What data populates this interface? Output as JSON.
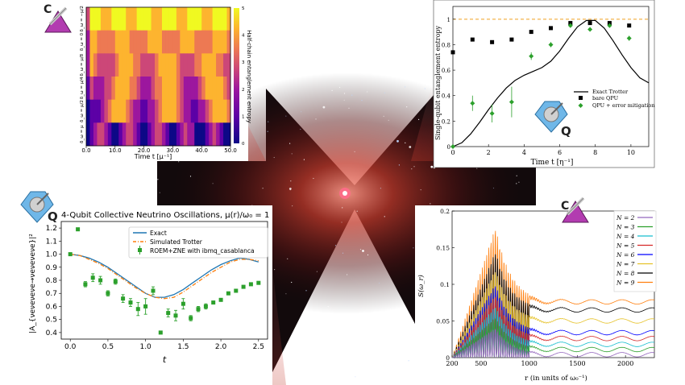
{
  "colors": {
    "space": "#0a0608",
    "nebula": "#c0392b",
    "quantum_icon": "#6fb7e8",
    "classical_icon": "#b23cb0"
  },
  "icons": {
    "top_left": {
      "name": "classical-computing-icon",
      "letter": "C"
    },
    "top_right": {
      "name": "quantum-computing-icon",
      "letter": "Q"
    },
    "mid_left": {
      "name": "quantum-computing-icon",
      "letter": "Q"
    },
    "bottom_right": {
      "name": "classical-computing-icon",
      "letter": "C"
    }
  },
  "chart_data": [
    {
      "id": "heatmap",
      "type": "heatmap",
      "title": "",
      "xlabel": "Time t [μ⁻¹]",
      "ylabel": "",
      "xticks": [
        "0.0",
        "10.0",
        "20.0",
        "30.0",
        "40.0",
        "50.0"
      ],
      "xlim": [
        0,
        50
      ],
      "row_labels": [
        "δ_ω = −μ/2",
        "δ_ω = 0",
        "δ_ω = μ/8",
        "δ_ω = μ/4",
        "δ_ω = μ/2",
        "δ_ω = μ"
      ],
      "colorbar": {
        "label": "Half-chain entanglement entropy",
        "ticks": [
          "0",
          "1",
          "2",
          "3",
          "4",
          "5"
        ],
        "range": [
          0,
          5
        ]
      },
      "colors": [
        "#0d0887",
        "#5c01a6",
        "#9c179e",
        "#cc4778",
        "#ed7953",
        "#fdb42f",
        "#f0f921"
      ]
    },
    {
      "id": "single-qubit-entropy",
      "type": "scatter",
      "title": "",
      "xlabel": "Time t [η⁻¹]",
      "ylabel": "Single-qubit entanglement entropy",
      "xlim": [
        0,
        11
      ],
      "ylim": [
        0,
        1.1
      ],
      "xticks": [
        "0",
        "2",
        "4",
        "6",
        "8",
        "10"
      ],
      "yticks": [
        "0",
        "0.2",
        "0.4",
        "0.6",
        "0.8",
        "1"
      ],
      "reference_line": 1.0,
      "series": [
        {
          "name": "Exact Trotter",
          "style": "line",
          "color": "#000000",
          "x": [
            0,
            0.5,
            1,
            1.5,
            2,
            2.5,
            3,
            3.5,
            4,
            4.5,
            5,
            5.5,
            6,
            6.5,
            7,
            7.5,
            8,
            8.5,
            9,
            9.5,
            10,
            10.5,
            11
          ],
          "y": [
            0.0,
            0.03,
            0.1,
            0.19,
            0.29,
            0.38,
            0.46,
            0.52,
            0.56,
            0.59,
            0.62,
            0.67,
            0.75,
            0.85,
            0.94,
            0.99,
            0.99,
            0.93,
            0.83,
            0.72,
            0.62,
            0.54,
            0.5
          ]
        },
        {
          "name": "bare QPU",
          "style": "square",
          "color": "#000000",
          "x": [
            0,
            1.1,
            2.2,
            3.3,
            4.4,
            5.5,
            6.6,
            7.7,
            8.8,
            9.9
          ],
          "y": [
            0.74,
            0.84,
            0.82,
            0.84,
            0.9,
            0.93,
            0.97,
            0.97,
            0.97,
            0.95
          ]
        },
        {
          "name": "QPU + error mitigation",
          "style": "diamond",
          "color": "#2ca02c",
          "x": [
            0,
            1.1,
            2.2,
            3.3,
            4.4,
            5.5,
            6.6,
            7.7,
            8.8,
            9.9
          ],
          "y": [
            0.0,
            0.34,
            0.26,
            0.35,
            0.71,
            0.8,
            0.95,
            0.92,
            0.95,
            0.85
          ],
          "err": [
            0.0,
            0.06,
            0.07,
            0.12,
            0.03,
            0.02,
            0.01,
            0.01,
            0.01,
            0.02
          ]
        }
      ]
    },
    {
      "id": "four-qubit-neutrino",
      "type": "line",
      "title": "4-Qubit Collective Neutrino Oscillations, μ(r)/ω₀ = 1",
      "xlabel": "t",
      "ylabel": "|A_{νeνeνeνe→νeνeνeνe}|²",
      "xlim": [
        -0.12,
        2.62
      ],
      "ylim": [
        0.35,
        1.25
      ],
      "xticks": [
        "0.0",
        "0.5",
        "1.0",
        "1.5",
        "2.0",
        "2.5"
      ],
      "yticks": [
        "0.4",
        "0.5",
        "0.6",
        "0.7",
        "0.8",
        "0.9",
        "1.0",
        "1.1",
        "1.2"
      ],
      "series": [
        {
          "name": "Exact",
          "style": "line",
          "color": "#1f77b4",
          "x": [
            0,
            0.125,
            0.25,
            0.375,
            0.5,
            0.625,
            0.75,
            0.875,
            1.0,
            1.125,
            1.25,
            1.375,
            1.5,
            1.625,
            1.75,
            1.875,
            2.0,
            2.125,
            2.25,
            2.375,
            2.5
          ],
          "y": [
            1.0,
            0.99,
            0.97,
            0.94,
            0.9,
            0.85,
            0.8,
            0.75,
            0.7,
            0.67,
            0.67,
            0.69,
            0.73,
            0.78,
            0.83,
            0.88,
            0.92,
            0.95,
            0.97,
            0.96,
            0.94
          ]
        },
        {
          "name": "Simulated Trotter",
          "style": "dashdot",
          "color": "#ff7f0e",
          "x": [
            0,
            0.125,
            0.25,
            0.375,
            0.5,
            0.625,
            0.75,
            0.875,
            1.0,
            1.125,
            1.25,
            1.375,
            1.5,
            1.625,
            1.75,
            1.875,
            2.0,
            2.125,
            2.25,
            2.375,
            2.5
          ],
          "y": [
            1.0,
            0.99,
            0.96,
            0.93,
            0.89,
            0.84,
            0.79,
            0.74,
            0.7,
            0.67,
            0.66,
            0.67,
            0.71,
            0.76,
            0.81,
            0.86,
            0.9,
            0.94,
            0.96,
            0.96,
            0.95
          ]
        },
        {
          "name": "ROEM+ZNE with ibmq_casablanca",
          "style": "errorbar",
          "color": "#2ca02c",
          "x": [
            0,
            0.1,
            0.2,
            0.3,
            0.4,
            0.5,
            0.6,
            0.7,
            0.8,
            0.9,
            1.0,
            1.1,
            1.2,
            1.3,
            1.4,
            1.5,
            1.6,
            1.7,
            1.8,
            1.9,
            2.0,
            2.1,
            2.2,
            2.3,
            2.4,
            2.5
          ],
          "y": [
            1.0,
            1.19,
            0.77,
            0.82,
            0.8,
            0.7,
            0.79,
            0.66,
            0.63,
            0.58,
            0.6,
            0.72,
            0.4,
            0.55,
            0.53,
            0.62,
            0.51,
            0.58,
            0.6,
            0.63,
            0.65,
            0.7,
            0.72,
            0.75,
            0.77,
            0.78
          ],
          "err": [
            0.0,
            0.0,
            0.02,
            0.03,
            0.03,
            0.02,
            0.02,
            0.03,
            0.03,
            0.05,
            0.06,
            0.03,
            0.0,
            0.03,
            0.04,
            0.04,
            0.02,
            0.02,
            0.02,
            0.01,
            0.01,
            0.01,
            0.01,
            0.01,
            0.01,
            0.01
          ]
        }
      ]
    },
    {
      "id": "spectrum",
      "type": "line",
      "title": "",
      "xlabel": "r (in units of ω₀⁻¹)",
      "ylabel": "S(ω_r)",
      "xlim": [
        200,
        2300
      ],
      "ylim": [
        0,
        0.2
      ],
      "xticks": [
        "200",
        "500",
        "1000",
        "1500",
        "2000"
      ],
      "yticks": [
        "0",
        "0.05",
        "0.1",
        "0.15",
        "0.2"
      ],
      "series": [
        {
          "name": "N = 2",
          "color": "#9467bd",
          "amplitude": 0.04,
          "plateau": 0.004
        },
        {
          "name": "N = 3",
          "color": "#2ca02c",
          "amplitude": 0.055,
          "plateau": 0.011
        },
        {
          "name": "N = 4",
          "color": "#17becf",
          "amplitude": 0.07,
          "plateau": 0.018
        },
        {
          "name": "N = 5",
          "color": "#d62728",
          "amplitude": 0.085,
          "plateau": 0.026
        },
        {
          "name": "N = 6",
          "color": "#0000ff",
          "amplitude": 0.1,
          "plateau": 0.034
        },
        {
          "name": "N = 7",
          "color": "#e6c229",
          "amplitude": 0.12,
          "plateau": 0.05
        },
        {
          "name": "N = 8",
          "color": "#000000",
          "amplitude": 0.145,
          "plateau": 0.065
        },
        {
          "name": "N = 9",
          "color": "#ff7f0e",
          "amplitude": 0.178,
          "plateau": 0.076
        }
      ]
    }
  ]
}
